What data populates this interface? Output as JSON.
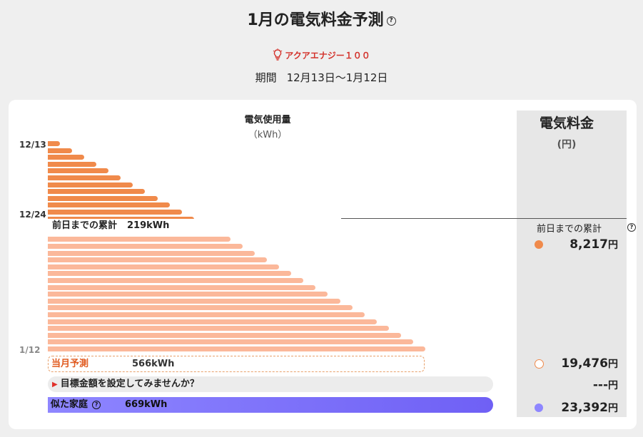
{
  "header": {
    "title": "1月の電気料金予測",
    "plan_name": "アクアエナジー１００",
    "period_label": "期間",
    "period_value": "12月13日〜1月12日"
  },
  "usage": {
    "title": "電気使用量",
    "unit": "（kWh）",
    "date_labels": [
      "12/13",
      "12/24",
      "1/12"
    ],
    "cumulative_label": "前日までの累計",
    "cumulative_value": "219kWh",
    "forecast_label": "当月予測",
    "forecast_value": "566kWh",
    "goal_prompt": "目標金額を設定してみませんか？",
    "similar_label": "似た家庭",
    "similar_value": "669kWh",
    "bars_elapsed_days": 12,
    "bars_forecast_days": 19,
    "max_cumulative_kwh": 566
  },
  "fee": {
    "title": "電気料金",
    "unit": "(円)",
    "cumulative_label": "前日までの累計",
    "cumulative_amount": "8,217",
    "forecast_amount": "19,476",
    "goal_amount": "---",
    "similar_amount": "23,392",
    "yen": "円"
  },
  "colors": {
    "elapsed_bar": "#f08a4b",
    "forecast_bar": "#fbb89a",
    "similar_bar": "#7b6ff7",
    "accent_red": "#d3322b"
  },
  "icons": {
    "help": "question-circle-icon",
    "plan": "lightbulb-icon",
    "goal": "triangle-right-icon"
  }
}
